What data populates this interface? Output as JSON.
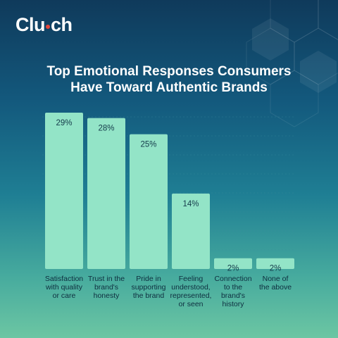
{
  "brand": {
    "name_pre": "Clu",
    "name_post": "ch"
  },
  "colors": {
    "bar": "#93e4c7",
    "value_text": "#143a4a",
    "grid": "#3a8c9a"
  },
  "chart_data": {
    "type": "bar",
    "title_lines": [
      "Top Emotional Responses Consumers",
      "Have Toward Authentic Brands"
    ],
    "categories": [
      "Satisfaction with quality or care",
      "Trust in the brand's honesty",
      "Pride in supporting the brand",
      "Feeling understood, represented, or seen",
      "Connection to the brand's history",
      "None of the above"
    ],
    "category_lines": [
      [
        "Satisfaction",
        "with quality",
        "or care"
      ],
      [
        "Trust in the",
        "brand's",
        "honesty"
      ],
      [
        "Pride in",
        "supporting",
        "the brand"
      ],
      [
        "Feeling",
        "understood,",
        "represented,",
        "or seen"
      ],
      [
        "Connection",
        "to the",
        "brand's",
        "history"
      ],
      [
        "None of",
        "the above"
      ]
    ],
    "values": [
      29,
      28,
      25,
      14,
      2,
      2
    ],
    "value_labels": [
      "29%",
      "28%",
      "25%",
      "14%",
      "2%",
      "2%"
    ],
    "ylim": [
      0,
      29
    ],
    "grid": true,
    "legend": "none"
  }
}
